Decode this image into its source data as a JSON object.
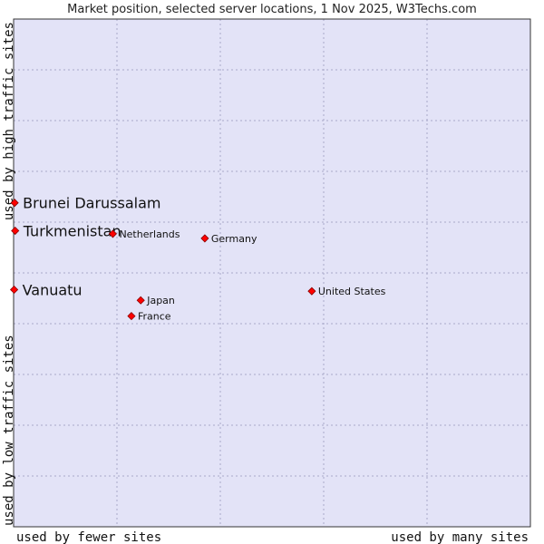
{
  "chart_data": {
    "type": "scatter",
    "title": "Market position, selected server locations, 1 Nov 2025, W3Techs.com",
    "xlabel_left": "used by fewer sites",
    "xlabel_right": "used by many sites",
    "ylabel_bottom": "used by low traffic sites",
    "ylabel_top": "used by high traffic sites",
    "xlim": [
      0,
      100
    ],
    "ylim": [
      0,
      100
    ],
    "grid": true,
    "colors": {
      "plot_bg": "#e3e3f7",
      "grid": "#a8a8c8",
      "border": "#333333",
      "marker_fill": "#ff0000",
      "marker_stroke": "#880000"
    },
    "points": [
      {
        "name": "Brunei Darussalam",
        "x": 0.2,
        "y": 63.8,
        "size": "large"
      },
      {
        "name": "Turkmenistan",
        "x": 0.3,
        "y": 58.3,
        "size": "large"
      },
      {
        "name": "Vanuatu",
        "x": 0.1,
        "y": 46.7,
        "size": "large"
      },
      {
        "name": "Netherlands",
        "x": 19.2,
        "y": 57.7,
        "size": "small"
      },
      {
        "name": "Germany",
        "x": 37.0,
        "y": 56.8,
        "size": "small"
      },
      {
        "name": "United States",
        "x": 57.7,
        "y": 46.4,
        "size": "small"
      },
      {
        "name": "Japan",
        "x": 24.6,
        "y": 44.6,
        "size": "small"
      },
      {
        "name": "France",
        "x": 22.8,
        "y": 41.5,
        "size": "small"
      }
    ]
  }
}
